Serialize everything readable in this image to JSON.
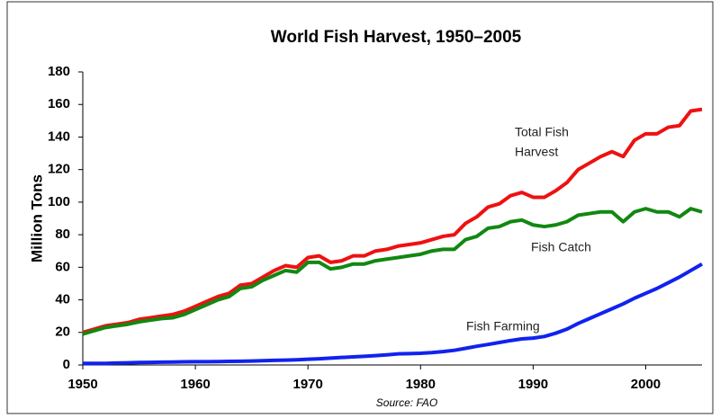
{
  "chart_data": {
    "type": "line",
    "title": "World Fish Harvest, 1950–2005",
    "ylabel": "Million Tons",
    "source": "Source: FAO",
    "annotations": [
      "Total Fish",
      "Harvest",
      "Fish Catch",
      "Fish Farming"
    ],
    "x": [
      1950,
      1951,
      1952,
      1953,
      1954,
      1955,
      1956,
      1957,
      1958,
      1959,
      1960,
      1961,
      1962,
      1963,
      1964,
      1965,
      1966,
      1967,
      1968,
      1969,
      1970,
      1971,
      1972,
      1973,
      1974,
      1975,
      1976,
      1977,
      1978,
      1979,
      1980,
      1981,
      1982,
      1983,
      1984,
      1985,
      1986,
      1987,
      1988,
      1989,
      1990,
      1991,
      1992,
      1993,
      1994,
      1995,
      1996,
      1997,
      1998,
      1999,
      2000,
      2001,
      2002,
      2003,
      2004,
      2005
    ],
    "series": [
      {
        "name": "Total Fish Harvest",
        "color": "#ee1111",
        "values": [
          20,
          22,
          24,
          25,
          26,
          28,
          29,
          30,
          31,
          33,
          36,
          39,
          42,
          44,
          49,
          50,
          54,
          58,
          61,
          60,
          66,
          67,
          63,
          64,
          67,
          67,
          70,
          71,
          73,
          74,
          75,
          77,
          79,
          80,
          87,
          91,
          97,
          99,
          104,
          106,
          103,
          103,
          107,
          112,
          120,
          124,
          128,
          131,
          128,
          138,
          142,
          142,
          146,
          147,
          156,
          157
        ]
      },
      {
        "name": "Fish Catch",
        "color": "#118811",
        "values": [
          19,
          21,
          23,
          24,
          25,
          26.5,
          27.5,
          28.5,
          29,
          31,
          34,
          37,
          40,
          42,
          47,
          48,
          52,
          55,
          58,
          57,
          63,
          63,
          59,
          60,
          62,
          62,
          64,
          65,
          66,
          67,
          68,
          70,
          71,
          71,
          77,
          79,
          84,
          85,
          88,
          89,
          86,
          85,
          86,
          88,
          92,
          93,
          94,
          94,
          88,
          94,
          96,
          94,
          94,
          91,
          96,
          94
        ]
      },
      {
        "name": "Fish Farming",
        "color": "#1122ee",
        "values": [
          1,
          1,
          1,
          1.2,
          1.3,
          1.5,
          1.6,
          1.7,
          1.8,
          1.9,
          2,
          2,
          2.1,
          2.2,
          2.3,
          2.4,
          2.6,
          2.8,
          3,
          3.2,
          3.5,
          3.8,
          4.2,
          4.6,
          5,
          5.3,
          5.7,
          6.2,
          6.8,
          7,
          7.2,
          7.6,
          8.2,
          9,
          10.2,
          11.5,
          12.6,
          13.8,
          15,
          16,
          16.5,
          17.5,
          19.5,
          22,
          25.5,
          28.5,
          31.5,
          34.5,
          37.5,
          41,
          44,
          47,
          50.5,
          54,
          58,
          62
        ]
      }
    ],
    "xlim": [
      1950,
      2005
    ],
    "xticks": [
      1950,
      1960,
      1970,
      1980,
      1990,
      2000
    ],
    "ylim": [
      0,
      180
    ],
    "yticks": [
      0,
      20,
      40,
      60,
      80,
      100,
      120,
      140,
      160,
      180
    ],
    "grid": false
  }
}
